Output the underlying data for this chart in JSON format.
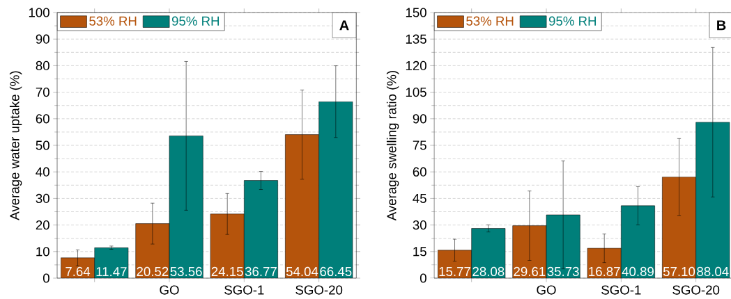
{
  "chart_data": [
    {
      "type": "bar",
      "ylabel": "Average water uptake (%)",
      "categories": [
        null,
        "GO",
        "SGO-1",
        "SGO-20"
      ],
      "ylim": [
        0,
        100
      ],
      "yticks": [
        0,
        10,
        20,
        30,
        40,
        50,
        60,
        70,
        80,
        90,
        100
      ],
      "grid": "y",
      "legend": "top left",
      "annotations": [
        "A"
      ],
      "series": [
        {
          "name": "53% RH",
          "color": "#b5540c",
          "values": [
            7.64,
            20.52,
            24.15,
            54.04
          ],
          "errors": [
            3.0,
            7.7,
            7.7,
            16.8
          ],
          "value_labels": [
            "7.64",
            "20.52",
            "24.15",
            "54.04"
          ]
        },
        {
          "name": "95% RH",
          "color": "#007f7a",
          "values": [
            11.47,
            53.56,
            36.77,
            66.45
          ],
          "errors": [
            0.6,
            28.0,
            3.4,
            13.5
          ],
          "value_labels": [
            "11.47",
            "53.56",
            "36.77",
            "66.45"
          ]
        }
      ]
    },
    {
      "type": "bar",
      "ylabel": "Average swelling ratio (%)",
      "categories": [
        null,
        "GO",
        "SGO-1",
        "SGO-20"
      ],
      "ylim": [
        0,
        150
      ],
      "yticks": [
        0,
        15,
        30,
        45,
        60,
        75,
        90,
        105,
        120,
        135,
        150
      ],
      "grid": "y",
      "legend": "top left",
      "annotations": [
        "B"
      ],
      "series": [
        {
          "name": "53% RH",
          "color": "#b5540c",
          "values": [
            15.77,
            29.61,
            16.87,
            57.1
          ],
          "errors": [
            6.2,
            19.6,
            8.1,
            21.7
          ],
          "value_labels": [
            "15.77",
            "29.61",
            "16.87",
            "57.10"
          ]
        },
        {
          "name": "95% RH",
          "color": "#007f7a",
          "values": [
            28.08,
            35.73,
            40.89,
            88.04
          ],
          "errors": [
            2.0,
            30.5,
            10.8,
            42.2
          ],
          "value_labels": [
            "28.08",
            "35.73",
            "40.89",
            "88.04"
          ]
        }
      ]
    }
  ]
}
